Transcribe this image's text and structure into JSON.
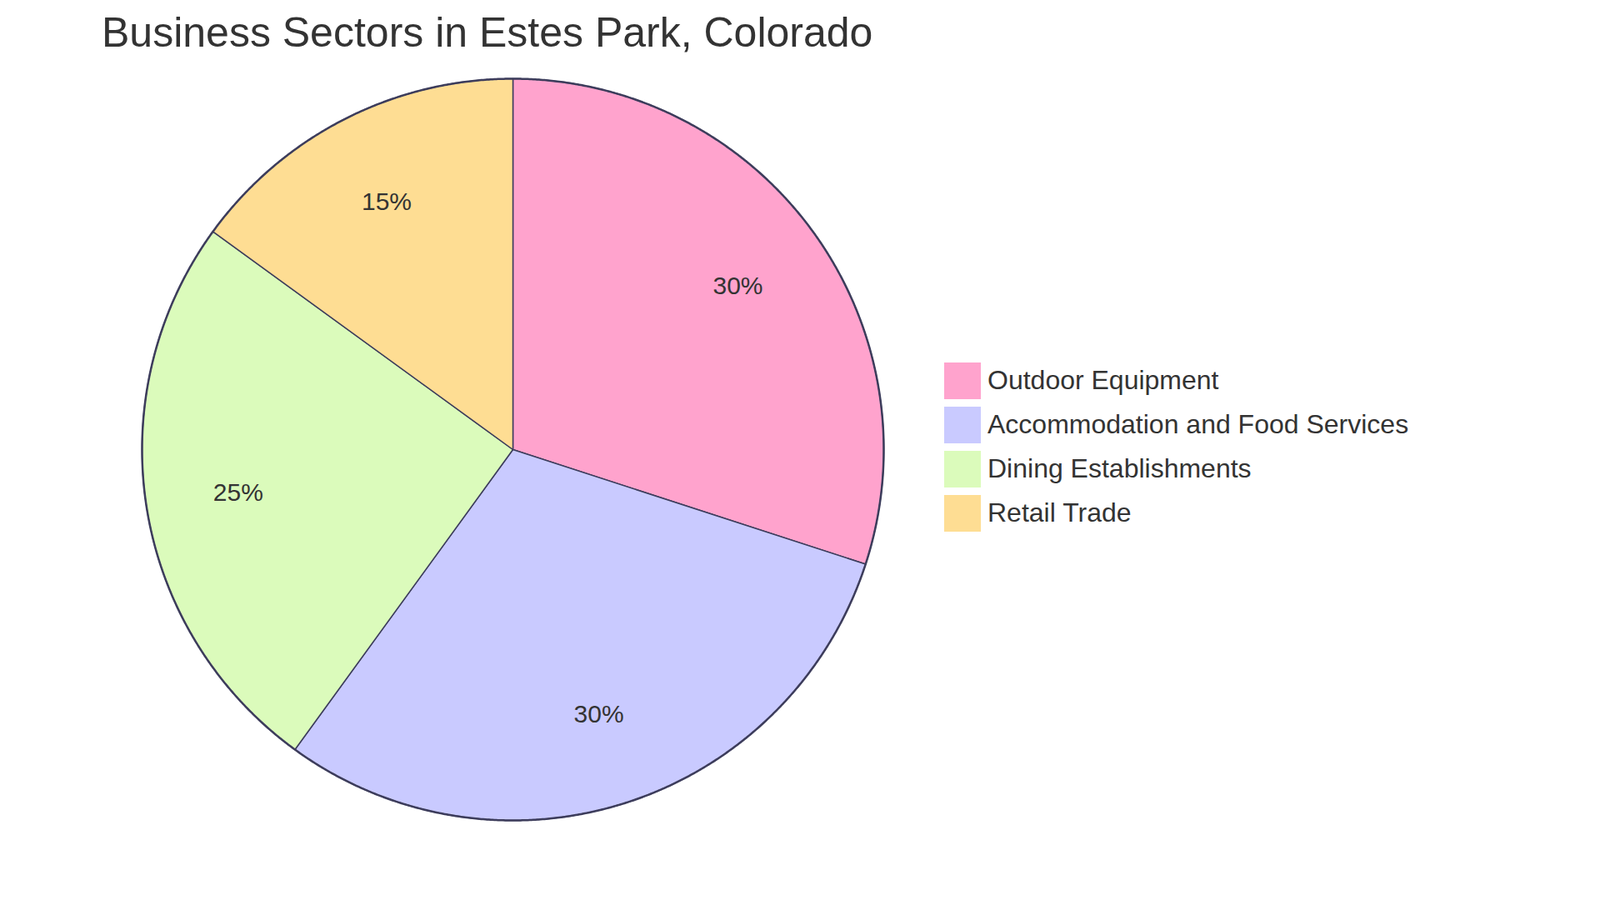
{
  "chart_data": {
    "type": "pie",
    "title": "Business Sectors in Estes Park, Colorado",
    "categories": [
      "Outdoor Equipment",
      "Accommodation and Food Services",
      "Dining Establishments",
      "Retail Trade"
    ],
    "values": [
      30,
      30,
      25,
      15
    ],
    "value_labels": [
      "30%",
      "30%",
      "25%",
      "15%"
    ],
    "colors": [
      "#ffa3cd",
      "#c9caff",
      "#dbfbbb",
      "#fedd93"
    ],
    "data_labels": true,
    "legend": "right"
  }
}
